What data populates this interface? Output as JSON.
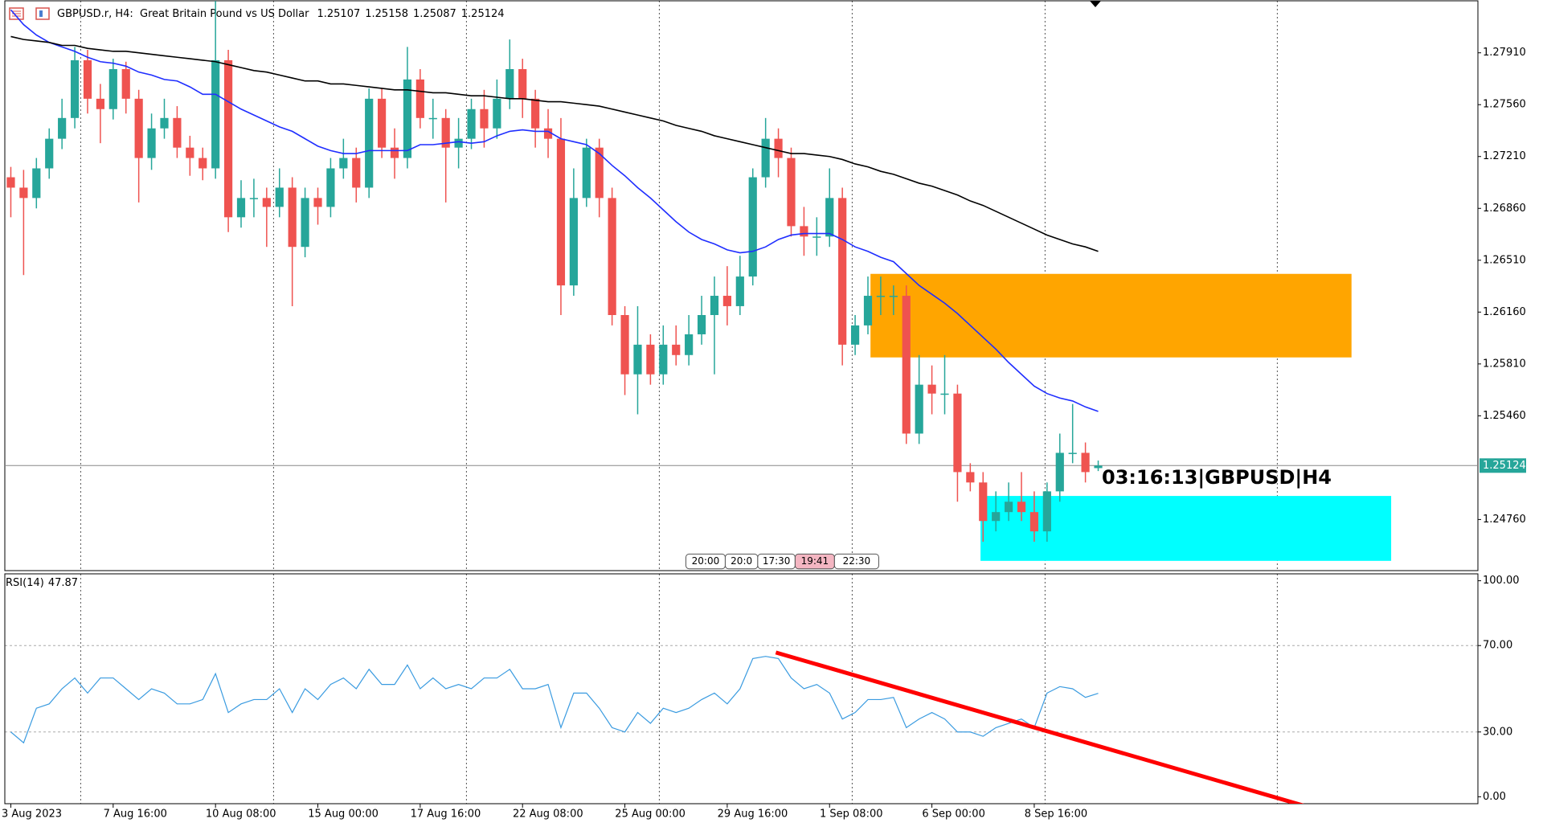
{
  "chart_data": [
    {
      "type": "candlestick",
      "title": "GBPUSD.r, H4:  Great Britain Pound vs US Dollar",
      "categories": [
        "3 Aug 2023",
        null,
        null,
        null,
        null,
        null,
        null,
        null,
        "7 Aug 16:00",
        null,
        null,
        null,
        null,
        null,
        null,
        null,
        "10 Aug 08:00",
        null,
        null,
        null,
        null,
        null,
        null,
        null,
        "15 Aug 00:00",
        null,
        null,
        null,
        null,
        null,
        null,
        null,
        "17 Aug 16:00",
        null,
        null,
        null,
        null,
        null,
        null,
        null,
        "22 Aug 08:00",
        null,
        null,
        null,
        null,
        null,
        null,
        null,
        "25 Aug 00:00",
        null,
        null,
        null,
        null,
        null,
        null,
        null,
        "29 Aug 16:00",
        null,
        null,
        null,
        null,
        null,
        null,
        null,
        "1 Sep 08:00",
        null,
        null,
        null,
        null,
        null,
        null,
        null,
        "6 Sep 00:00",
        null,
        null,
        null,
        null,
        null,
        null,
        null,
        "8 Sep 16:00",
        null,
        null,
        null,
        null,
        null
      ],
      "open": [
        1.2707,
        1.27,
        1.2693,
        1.2713,
        1.2733,
        1.2747,
        1.2786,
        1.276,
        1.2753,
        1.278,
        1.276,
        1.272,
        1.274,
        1.2747,
        1.2727,
        1.272,
        1.2713,
        1.2786,
        1.268,
        1.2693,
        1.2693,
        1.2687,
        1.27,
        1.266,
        1.2693,
        1.2687,
        1.2713,
        1.272,
        1.27,
        1.276,
        1.2727,
        1.272,
        1.2773,
        1.2747,
        1.2747,
        1.2727,
        1.2733,
        1.2753,
        1.274,
        1.276,
        1.278,
        1.276,
        1.274,
        1.2733,
        1.2634,
        1.2693,
        1.2727,
        1.2693,
        1.2614,
        1.2574,
        1.2594,
        1.2574,
        1.2594,
        1.2587,
        1.2601,
        1.2614,
        1.2627,
        1.262,
        1.264,
        1.2707,
        1.2733,
        1.272,
        1.2674,
        1.2667,
        1.2667,
        1.2693,
        1.2594,
        1.2607,
        1.2627,
        1.2627,
        1.2627,
        1.2534,
        1.2567,
        1.2561,
        1.2561,
        1.2508,
        1.2501,
        1.2475,
        1.2481,
        1.2488,
        1.2481,
        1.2468,
        1.2495,
        1.2521,
        1.2521,
        1.25107
      ],
      "high": [
        1.2714,
        1.2712,
        1.272,
        1.274,
        1.276,
        1.2795,
        1.2793,
        1.277,
        1.2787,
        1.2785,
        1.2766,
        1.275,
        1.276,
        1.2755,
        1.2735,
        1.2727,
        1.2826,
        1.2793,
        1.2705,
        1.2706,
        1.27,
        1.2713,
        1.2707,
        1.27,
        1.27,
        1.272,
        1.2733,
        1.2727,
        1.2767,
        1.2767,
        1.274,
        1.2795,
        1.278,
        1.276,
        1.2753,
        1.2747,
        1.276,
        1.2766,
        1.2773,
        1.28,
        1.2787,
        1.2766,
        1.2753,
        1.2747,
        1.2713,
        1.2733,
        1.2733,
        1.27,
        1.262,
        1.262,
        1.2601,
        1.2607,
        1.2607,
        1.2614,
        1.2627,
        1.264,
        1.2647,
        1.2654,
        1.2713,
        1.2747,
        1.274,
        1.2727,
        1.2687,
        1.268,
        1.2713,
        1.27,
        1.2614,
        1.264,
        1.264,
        1.2634,
        1.2634,
        1.2587,
        1.258,
        1.2587,
        1.2567,
        1.2514,
        1.2508,
        1.2495,
        1.2501,
        1.2508,
        1.2495,
        1.2501,
        1.2534,
        1.2554,
        1.2528,
        1.25158
      ],
      "low": [
        1.268,
        1.2641,
        1.2686,
        1.2706,
        1.2726,
        1.274,
        1.275,
        1.273,
        1.2746,
        1.275,
        1.269,
        1.2712,
        1.2733,
        1.272,
        1.2708,
        1.2705,
        1.2706,
        1.267,
        1.2673,
        1.268,
        1.266,
        1.268,
        1.262,
        1.2653,
        1.2675,
        1.268,
        1.2706,
        1.269,
        1.2693,
        1.272,
        1.2706,
        1.2713,
        1.274,
        1.2733,
        1.269,
        1.2713,
        1.2726,
        1.2727,
        1.2733,
        1.2753,
        1.2747,
        1.2727,
        1.272,
        1.2614,
        1.2627,
        1.2687,
        1.268,
        1.2607,
        1.256,
        1.2547,
        1.2567,
        1.2567,
        1.258,
        1.258,
        1.2594,
        1.2574,
        1.2607,
        1.2614,
        1.2634,
        1.27,
        1.2707,
        1.2667,
        1.2654,
        1.2654,
        1.266,
        1.258,
        1.2587,
        1.2601,
        1.2614,
        1.2614,
        1.2527,
        1.2527,
        1.2547,
        1.2547,
        1.2488,
        1.2495,
        1.2461,
        1.2468,
        1.2475,
        1.2475,
        1.2461,
        1.2461,
        1.2488,
        1.2514,
        1.2501,
        1.25087
      ],
      "close": [
        1.27,
        1.2693,
        1.2713,
        1.2733,
        1.2747,
        1.2786,
        1.276,
        1.2753,
        1.278,
        1.276,
        1.272,
        1.274,
        1.2747,
        1.2727,
        1.272,
        1.2713,
        1.2786,
        1.268,
        1.2693,
        1.2693,
        1.2687,
        1.27,
        1.266,
        1.2693,
        1.2687,
        1.2713,
        1.272,
        1.27,
        1.276,
        1.2727,
        1.272,
        1.2773,
        1.2747,
        1.2747,
        1.2727,
        1.2733,
        1.2753,
        1.274,
        1.276,
        1.278,
        1.276,
        1.274,
        1.2733,
        1.2634,
        1.2693,
        1.2727,
        1.2693,
        1.2614,
        1.2574,
        1.2594,
        1.2574,
        1.2594,
        1.2587,
        1.2601,
        1.2614,
        1.2627,
        1.262,
        1.264,
        1.2707,
        1.2733,
        1.272,
        1.2674,
        1.2667,
        1.2667,
        1.2693,
        1.2594,
        1.2607,
        1.2627,
        1.2627,
        1.2627,
        1.2534,
        1.2567,
        1.2561,
        1.2561,
        1.2508,
        1.2501,
        1.2475,
        1.2481,
        1.2488,
        1.2481,
        1.2468,
        1.2495,
        1.2521,
        1.2521,
        1.2508,
        1.25124
      ],
      "up_color": "#26a69a",
      "down_color": "#ef5350",
      "series": [
        {
          "color": "#1f2eff",
          "values": [
            1.282,
            1.281,
            1.2803,
            1.2798,
            1.2795,
            1.2792,
            1.2788,
            1.2785,
            1.2784,
            1.2782,
            1.2778,
            1.2776,
            1.2773,
            1.2772,
            1.2768,
            1.2763,
            1.2763,
            1.2758,
            1.2753,
            1.2749,
            1.2745,
            1.2741,
            1.2738,
            1.2733,
            1.2728,
            1.2725,
            1.2723,
            1.2723,
            1.2725,
            1.2725,
            1.2725,
            1.2725,
            1.2729,
            1.2729,
            1.273,
            1.2731,
            1.273,
            1.2731,
            1.2735,
            1.2738,
            1.2739,
            1.2738,
            1.2738,
            1.2733,
            1.2731,
            1.2729,
            1.2723,
            1.2715,
            1.2708,
            1.27,
            1.2693,
            1.2685,
            1.2677,
            1.267,
            1.2665,
            1.2662,
            1.2658,
            1.2656,
            1.2657,
            1.266,
            1.2665,
            1.2668,
            1.2669,
            1.2669,
            1.2669,
            1.2665,
            1.266,
            1.2657,
            1.2653,
            1.265,
            1.2642,
            1.2634,
            1.2628,
            1.2622,
            1.2615,
            1.2607,
            1.2599,
            1.2591,
            1.2582,
            1.2574,
            1.2566,
            1.2561,
            1.2558,
            1.2556,
            1.2552,
            1.2549
          ]
        },
        {
          "color": "#000000",
          "values": [
            1.2802,
            1.28,
            1.2799,
            1.2798,
            1.2796,
            1.2796,
            1.2794,
            1.2793,
            1.2792,
            1.2792,
            1.2791,
            1.279,
            1.2789,
            1.2788,
            1.2787,
            1.2786,
            1.2785,
            1.2783,
            1.2781,
            1.2779,
            1.2778,
            1.2776,
            1.2774,
            1.2772,
            1.2772,
            1.277,
            1.277,
            1.2769,
            1.2768,
            1.2767,
            1.2766,
            1.2766,
            1.2765,
            1.2764,
            1.2764,
            1.2763,
            1.2762,
            1.2762,
            1.2761,
            1.276,
            1.276,
            1.2759,
            1.2758,
            1.2758,
            1.2757,
            1.2756,
            1.2755,
            1.2753,
            1.2751,
            1.2749,
            1.2747,
            1.2745,
            1.2742,
            1.274,
            1.2738,
            1.2735,
            1.2733,
            1.2731,
            1.2729,
            1.2727,
            1.2725,
            1.2723,
            1.2723,
            1.2722,
            1.2721,
            1.2719,
            1.2716,
            1.2714,
            1.2711,
            1.2709,
            1.2706,
            1.2703,
            1.2701,
            1.2698,
            1.2695,
            1.2691,
            1.2688,
            1.2684,
            1.268,
            1.2676,
            1.2672,
            1.2668,
            1.2665,
            1.2662,
            1.266,
            1.2657
          ]
        }
      ],
      "ylim": [
        1.24415,
        1.28261
      ],
      "yticks": [
        {
          "value": 1.2476,
          "label": "1.24760"
        },
        {
          "value": 1.2546,
          "label": "1.25460"
        },
        {
          "value": 1.2581,
          "label": "1.25810"
        },
        {
          "value": 1.2616,
          "label": "1.26160"
        },
        {
          "value": 1.2651,
          "label": "1.26510"
        },
        {
          "value": 1.2686,
          "label": "1.26860"
        },
        {
          "value": 1.2721,
          "label": "1.27210"
        },
        {
          "value": 1.2756,
          "label": "1.27560"
        },
        {
          "value": 1.2791,
          "label": "1.27910"
        }
      ],
      "zones": [
        {
          "x": [
            67.2,
            104.8
          ],
          "y": [
            1.25854,
            1.26418
          ],
          "color": "#ffa500"
        },
        {
          "x": [
            75.8,
            107.9
          ],
          "y": [
            1.24481,
            1.24919
          ],
          "color": "#00ffff"
        }
      ],
      "annotation": "03:16:13|GBPUSD|H4",
      "time_markers": [
        "20:00",
        "20:0",
        "17:30",
        "19:41",
        "22:30"
      ],
      "grid": true
    },
    {
      "type": "line",
      "title": "RSI(14)",
      "series": [
        {
          "color": "#3a9be0",
          "values": [
            30,
            25,
            41,
            43,
            50,
            55,
            48,
            55,
            55,
            50,
            45,
            50,
            48,
            43,
            43,
            45,
            57,
            39,
            43,
            45,
            45,
            50,
            39,
            50,
            45,
            52,
            55,
            50,
            59,
            52,
            52,
            61,
            50,
            55,
            50,
            52,
            50,
            55,
            55,
            59,
            50,
            50,
            52,
            32,
            48,
            48,
            41,
            32,
            30,
            39,
            34,
            41,
            39,
            41,
            45,
            48,
            43,
            50,
            64,
            65,
            64,
            55,
            50,
            52,
            48,
            36,
            39,
            45,
            45,
            46,
            32,
            36,
            39,
            36,
            30,
            30,
            28,
            32,
            34,
            36,
            32,
            48,
            51,
            50,
            46,
            47.87
          ]
        }
      ],
      "ylim": [
        -3.2,
        103.2
      ],
      "yticks": [
        {
          "value": 0,
          "label": "0.00"
        },
        {
          "value": 30,
          "label": "30.00"
        },
        {
          "value": 70,
          "label": "70.00"
        },
        {
          "value": 100,
          "label": "100.00"
        }
      ],
      "trendline": {
        "x": [
          59.8,
          101.3
        ],
        "values": [
          66.8,
          -4.5
        ],
        "color": "#ff0000"
      }
    }
  ]
}
